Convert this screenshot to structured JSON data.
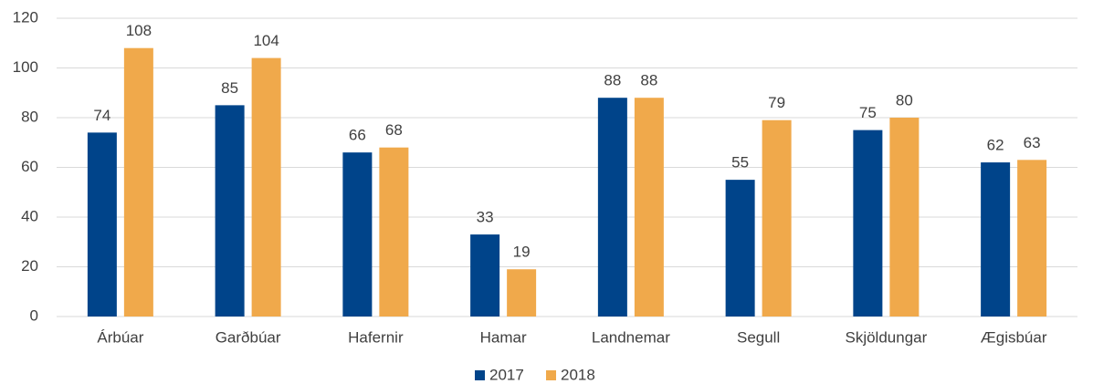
{
  "chart_data": {
    "type": "bar",
    "categories": [
      "Árbúar",
      "Garðbúar",
      "Hafernir",
      "Hamar",
      "Landnemar",
      "Segull",
      "Skjöldungar",
      "Ægisbúar"
    ],
    "series": [
      {
        "name": "2017",
        "color": "#00448a",
        "values": [
          74,
          85,
          66,
          33,
          88,
          55,
          75,
          62
        ]
      },
      {
        "name": "2018",
        "color": "#f0a94b",
        "values": [
          108,
          104,
          68,
          19,
          88,
          79,
          80,
          63
        ]
      }
    ],
    "ylim": [
      0,
      120
    ],
    "yticks": [
      0,
      20,
      40,
      60,
      80,
      100,
      120
    ],
    "grid": true,
    "legend": "bottom"
  }
}
